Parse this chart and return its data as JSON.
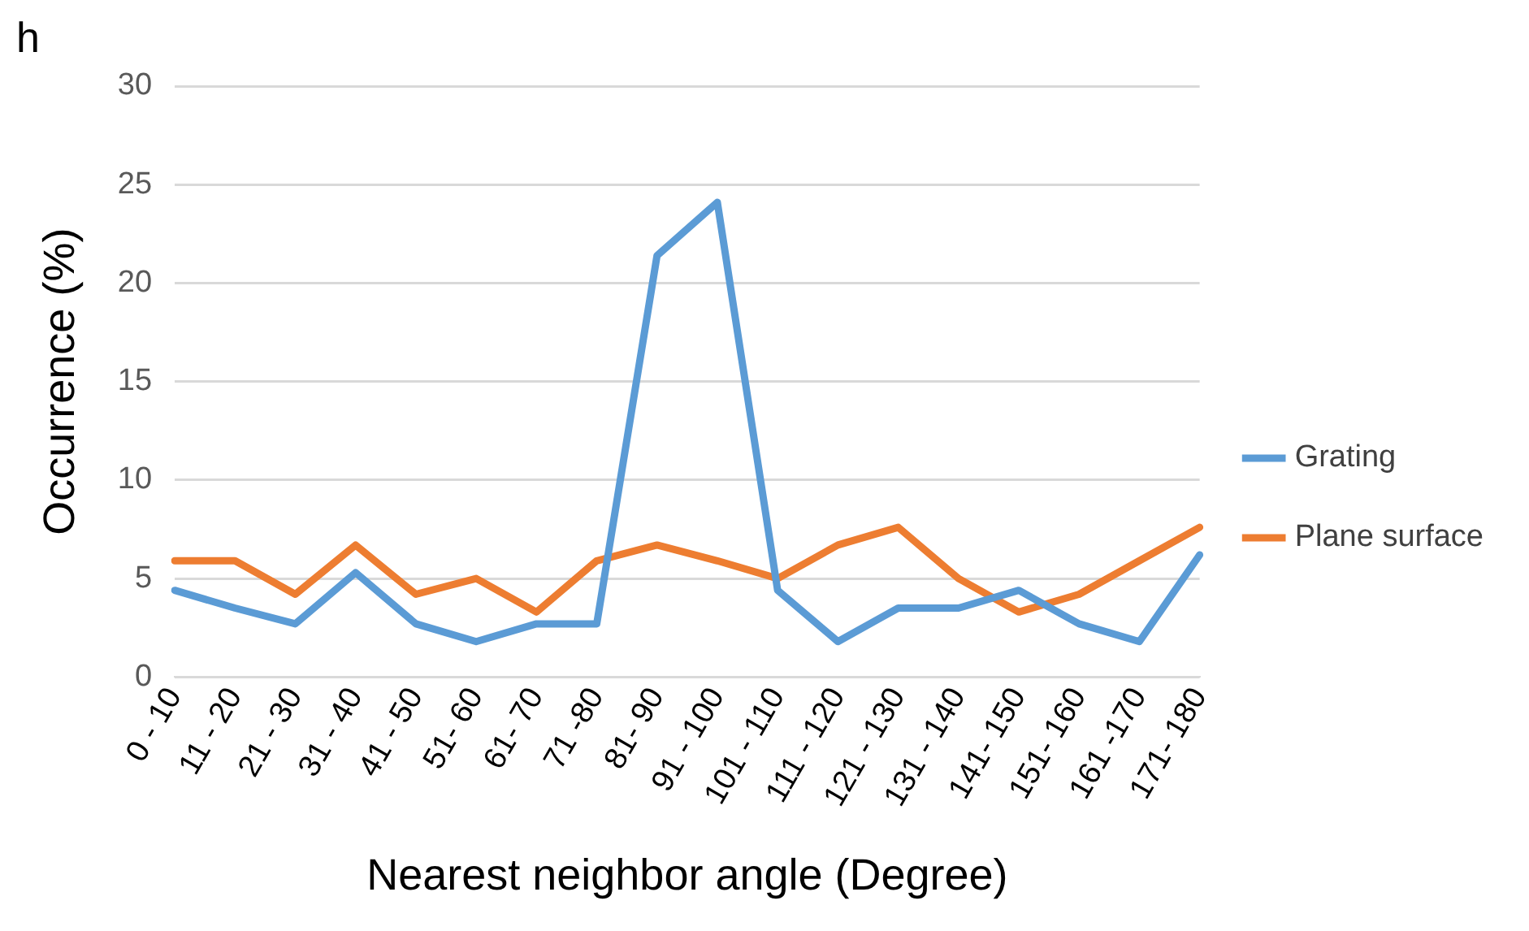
{
  "chart_data": {
    "type": "line",
    "xlabel": "Nearest neighbor angle (Degree)",
    "ylabel": "Occurrence (%)",
    "annotations": [
      "h"
    ],
    "categories": [
      "0 - 10",
      "11 - 20",
      "21 - 30",
      "31 - 40",
      "41 - 50",
      "51- 60",
      "61- 70",
      "71 -80",
      "81- 90",
      "91 - 100",
      "101 - 110",
      "111 - 120",
      "121 - 130",
      "131 - 140",
      "141- 150",
      "151- 160",
      "161 -170",
      "171- 180"
    ],
    "series": [
      {
        "name": "Grating",
        "color": "#5b9bd5",
        "values": [
          4.4,
          3.5,
          2.7,
          5.3,
          2.7,
          1.8,
          2.7,
          2.7,
          21.4,
          24.1,
          4.4,
          1.8,
          3.5,
          3.5,
          4.4,
          2.7,
          1.8,
          6.2
        ]
      },
      {
        "name": "Plane surface",
        "color": "#ed7d31",
        "values": [
          5.9,
          5.9,
          4.2,
          6.7,
          4.2,
          5.0,
          3.3,
          5.9,
          6.7,
          5.9,
          5.0,
          6.7,
          7.6,
          5.0,
          3.3,
          4.2,
          5.9,
          7.6
        ]
      }
    ],
    "ylim": [
      0,
      30
    ],
    "yticks": [
      0,
      5,
      10,
      15,
      20,
      25,
      30
    ],
    "grid": "y",
    "legend": "right",
    "marker": "none",
    "line_style": "solid"
  }
}
